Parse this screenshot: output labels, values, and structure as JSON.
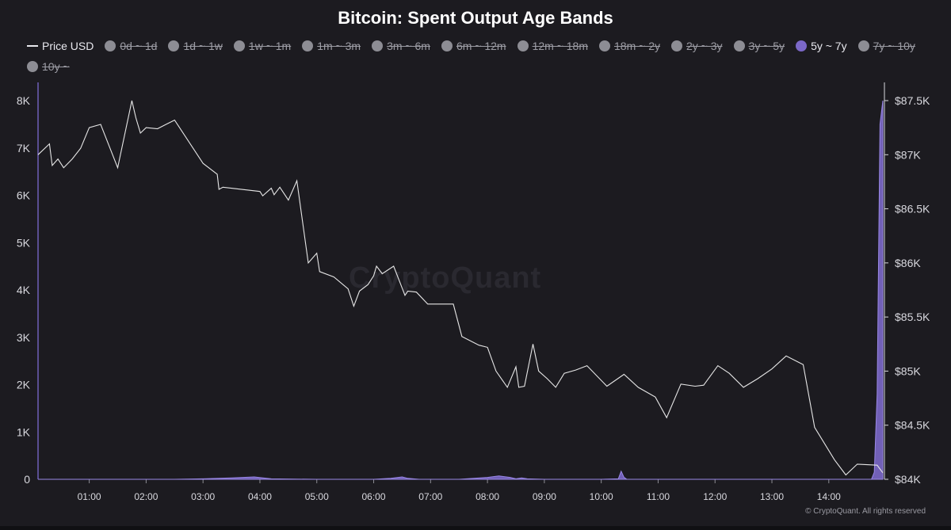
{
  "chart_data": {
    "type": "line",
    "title": "Bitcoin: Spent Output Age Bands",
    "watermark": "CryptoQuant",
    "copyright": "© CryptoQuant. All rights reserved",
    "x_ticks": [
      "01:00",
      "02:00",
      "03:00",
      "04:00",
      "05:00",
      "06:00",
      "07:00",
      "08:00",
      "09:00",
      "10:00",
      "11:00",
      "12:00",
      "13:00",
      "14:00"
    ],
    "y_left": {
      "ticks": [
        "0",
        "1K",
        "2K",
        "3K",
        "4K",
        "5K",
        "6K",
        "7K",
        "8K"
      ],
      "range": [
        0,
        8000
      ]
    },
    "y_right": {
      "ticks": [
        "$84K",
        "$84.5K",
        "$85K",
        "$85.5K",
        "$86K",
        "$86.5K",
        "$87K",
        "$87.5K"
      ],
      "range": [
        84000,
        87500
      ]
    },
    "x_range_hours": [
      0.1,
      14.95
    ],
    "legend": [
      {
        "label": "Price USD",
        "kind": "line",
        "state": "active"
      },
      {
        "label": "0d ~ 1d",
        "kind": "dot",
        "state": "hidden"
      },
      {
        "label": "1d ~ 1w",
        "kind": "dot",
        "state": "hidden"
      },
      {
        "label": "1w ~ 1m",
        "kind": "dot",
        "state": "hidden"
      },
      {
        "label": "1m ~ 3m",
        "kind": "dot",
        "state": "hidden"
      },
      {
        "label": "3m ~ 6m",
        "kind": "dot",
        "state": "hidden"
      },
      {
        "label": "6m ~ 12m",
        "kind": "dot",
        "state": "hidden"
      },
      {
        "label": "12m ~ 18m",
        "kind": "dot",
        "state": "hidden"
      },
      {
        "label": "18m ~ 2y",
        "kind": "dot",
        "state": "hidden"
      },
      {
        "label": "2y ~ 3y",
        "kind": "dot",
        "state": "hidden"
      },
      {
        "label": "3y ~ 5y",
        "kind": "dot",
        "state": "hidden"
      },
      {
        "label": "5y ~ 7y",
        "kind": "dot",
        "state": "active",
        "color": "#7b68c8"
      },
      {
        "label": "7y ~ 10y",
        "kind": "dot",
        "state": "hidden"
      },
      {
        "label": "10y ~",
        "kind": "dot",
        "state": "hidden"
      }
    ],
    "colors": {
      "price": "#e6e6e6",
      "band": "#7b68c8",
      "background": "#1c1b20"
    },
    "series": [
      {
        "name": "Price USD",
        "axis": "right",
        "x": [
          0.1,
          0.3,
          0.35,
          0.45,
          0.55,
          0.7,
          0.85,
          1.0,
          1.2,
          1.5,
          1.75,
          1.82,
          1.9,
          2.0,
          2.2,
          2.35,
          2.5,
          3.0,
          3.25,
          3.28,
          3.35,
          4.0,
          4.05,
          4.2,
          4.25,
          4.35,
          4.5,
          4.65,
          4.85,
          5.0,
          5.05,
          5.3,
          5.55,
          5.65,
          5.75,
          5.9,
          6.0,
          6.05,
          6.15,
          6.35,
          6.55,
          6.6,
          6.75,
          6.95,
          7.4,
          7.55,
          7.85,
          8.0,
          8.15,
          8.35,
          8.5,
          8.55,
          8.65,
          8.8,
          8.9,
          9.05,
          9.2,
          9.35,
          9.55,
          9.75,
          10.1,
          10.4,
          10.65,
          10.95,
          11.15,
          11.4,
          11.65,
          11.8,
          12.05,
          12.25,
          12.5,
          12.75,
          13.0,
          13.25,
          13.55,
          13.75,
          14.1,
          14.3,
          14.5,
          14.85,
          14.95
        ],
        "y": [
          87000,
          87100,
          86900,
          86960,
          86880,
          86960,
          87060,
          87250,
          87280,
          86880,
          87500,
          87340,
          87200,
          87250,
          87240,
          87280,
          87320,
          86920,
          86820,
          86680,
          86700,
          86660,
          86620,
          86690,
          86630,
          86700,
          86580,
          86760,
          86000,
          86090,
          85920,
          85870,
          85760,
          85600,
          85740,
          85800,
          85880,
          85970,
          85900,
          85970,
          85700,
          85740,
          85730,
          85620,
          85620,
          85320,
          85240,
          85220,
          85000,
          84850,
          85040,
          84850,
          84860,
          85250,
          85000,
          84930,
          84850,
          84980,
          85010,
          85050,
          84860,
          84970,
          84850,
          84760,
          84570,
          84880,
          84860,
          84870,
          85050,
          84980,
          84850,
          84930,
          85020,
          85140,
          85060,
          84480,
          84180,
          84040,
          84140,
          84130,
          84060
        ]
      },
      {
        "name": "5y ~ 7y",
        "axis": "left",
        "x": [
          0.1,
          2.5,
          3.0,
          3.5,
          3.9,
          4.2,
          5.0,
          6.0,
          6.3,
          6.5,
          6.6,
          6.8,
          7.0,
          7.5,
          8.0,
          8.2,
          8.4,
          8.5,
          8.6,
          8.7,
          9.0,
          10.0,
          10.3,
          10.35,
          10.4,
          10.45,
          11.0,
          12.0,
          13.0,
          14.0,
          14.75,
          14.8,
          14.85,
          14.9,
          14.95
        ],
        "y": [
          0,
          0,
          10,
          30,
          50,
          10,
          0,
          0,
          20,
          50,
          20,
          0,
          0,
          0,
          40,
          70,
          40,
          10,
          30,
          10,
          0,
          0,
          10,
          170,
          40,
          0,
          0,
          0,
          0,
          0,
          0,
          150,
          1800,
          7500,
          8000
        ]
      }
    ]
  }
}
